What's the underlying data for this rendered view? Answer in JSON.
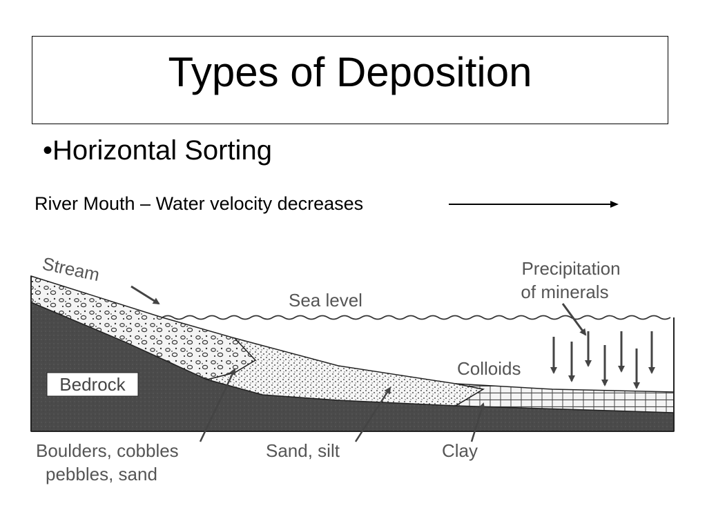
{
  "slide": {
    "title": "Types of Deposition",
    "bullet": "•Horizontal Sorting",
    "subtitle": "River Mouth – Water velocity decreases"
  },
  "diagram": {
    "labels": {
      "stream": "Stream",
      "sea_level": "Sea level",
      "precipitation_line1": "Precipitation",
      "precipitation_line2": "of minerals",
      "colloids": "Colloids",
      "bedrock": "Bedrock",
      "boulders_line1": "Boulders, cobbles",
      "boulders_line2": "pebbles, sand",
      "sand_silt": "Sand, silt",
      "clay": "Clay"
    }
  },
  "colors": {
    "bedrock": "#4a4a4a",
    "label_gray": "#555555",
    "sediment": "#f2f2f2"
  }
}
